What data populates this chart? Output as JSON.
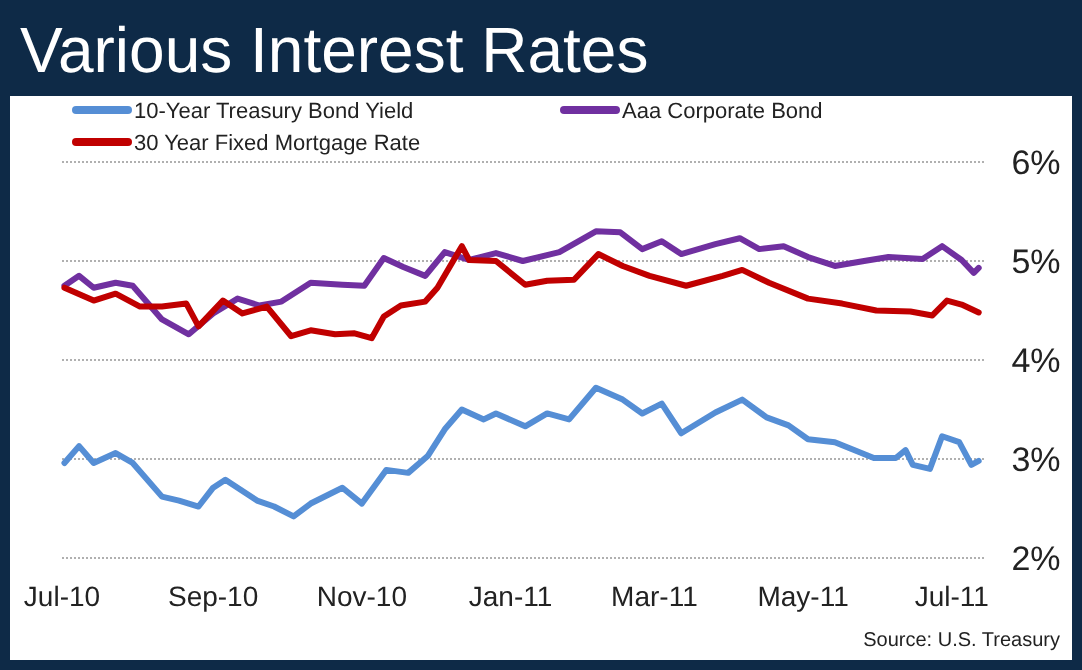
{
  "chart_data": {
    "type": "line",
    "title": "Various Interest Rates",
    "annotations": [
      "Source:  U.S. Treasury"
    ],
    "xlim": [
      "2010-07-01",
      "2011-07-15"
    ],
    "xticks": [
      {
        "value": "2010-07-01",
        "label": "Jul-10"
      },
      {
        "value": "2010-09-01",
        "label": "Sep-10"
      },
      {
        "value": "2010-11-01",
        "label": "Nov-10"
      },
      {
        "value": "2011-01-01",
        "label": "Jan-11"
      },
      {
        "value": "2011-03-01",
        "label": "Mar-11"
      },
      {
        "value": "2011-05-01",
        "label": "May-11"
      },
      {
        "value": "2011-07-01",
        "label": "Jul-11"
      }
    ],
    "ylim": [
      2,
      6
    ],
    "yticks": [
      {
        "value": 2,
        "label": "2%"
      },
      {
        "value": 3,
        "label": "3%"
      },
      {
        "value": 4,
        "label": "4%"
      },
      {
        "value": 5,
        "label": "5%"
      },
      {
        "value": 6,
        "label": "6%"
      }
    ],
    "grid": "y",
    "legend": "top",
    "marker": "none",
    "line_style": "solid",
    "series": [
      {
        "name": "10-Year Treasury Bond Yield",
        "color": "#558ed5",
        "x": [
          "2010-07-02",
          "2010-07-08",
          "2010-07-14",
          "2010-07-23",
          "2010-07-30",
          "2010-08-11",
          "2010-08-18",
          "2010-08-26",
          "2010-09-01",
          "2010-09-06",
          "2010-09-19",
          "2010-09-26",
          "2010-10-04",
          "2010-10-11",
          "2010-10-24",
          "2010-11-01",
          "2010-11-11",
          "2010-11-20",
          "2010-11-28",
          "2010-12-05",
          "2010-12-12",
          "2010-12-21",
          "2010-12-26",
          "2011-01-07",
          "2011-01-16",
          "2011-01-25",
          "2011-02-05",
          "2011-02-16",
          "2011-02-24",
          "2011-03-04",
          "2011-03-12",
          "2011-03-26",
          "2011-04-06",
          "2011-04-16",
          "2011-04-25",
          "2011-05-03",
          "2011-05-14",
          "2011-05-30",
          "2011-06-08",
          "2011-06-12",
          "2011-06-15",
          "2011-06-22",
          "2011-06-27",
          "2011-07-04",
          "2011-07-09",
          "2011-07-12"
        ],
        "values": [
          2.96,
          3.13,
          2.96,
          3.06,
          2.96,
          2.62,
          2.58,
          2.52,
          2.71,
          2.79,
          2.58,
          2.52,
          2.42,
          2.55,
          2.71,
          2.55,
          2.89,
          2.86,
          3.03,
          3.3,
          3.5,
          3.4,
          3.46,
          3.33,
          3.46,
          3.4,
          3.72,
          3.6,
          3.46,
          3.56,
          3.26,
          3.47,
          3.6,
          3.42,
          3.34,
          3.2,
          3.17,
          3.01,
          3.01,
          3.09,
          2.94,
          2.9,
          3.23,
          3.17,
          2.94,
          2.98
        ]
      },
      {
        "name": "Aaa Corporate Bond",
        "color": "#7030a0",
        "x": [
          "2010-07-02",
          "2010-07-08",
          "2010-07-14",
          "2010-07-23",
          "2010-07-30",
          "2010-08-11",
          "2010-08-22",
          "2010-09-01",
          "2010-09-11",
          "2010-09-20",
          "2010-09-29",
          "2010-10-11",
          "2010-10-24",
          "2010-11-02",
          "2010-11-10",
          "2010-11-18",
          "2010-11-27",
          "2010-12-05",
          "2010-12-15",
          "2010-12-26",
          "2011-01-06",
          "2011-01-21",
          "2011-02-05",
          "2011-02-15",
          "2011-02-24",
          "2011-03-04",
          "2011-03-12",
          "2011-03-26",
          "2011-04-05",
          "2011-04-13",
          "2011-04-23",
          "2011-05-03",
          "2011-05-14",
          "2011-05-26",
          "2011-06-05",
          "2011-06-19",
          "2011-06-27",
          "2011-07-05",
          "2011-07-10",
          "2011-07-12"
        ],
        "values": [
          4.75,
          4.85,
          4.73,
          4.78,
          4.75,
          4.41,
          4.26,
          4.47,
          4.62,
          4.55,
          4.59,
          4.78,
          4.76,
          4.75,
          5.03,
          4.94,
          4.85,
          5.09,
          5.01,
          5.08,
          5.0,
          5.09,
          5.3,
          5.29,
          5.12,
          5.2,
          5.07,
          5.17,
          5.23,
          5.12,
          5.15,
          5.04,
          4.95,
          5.0,
          5.04,
          5.02,
          5.15,
          5.01,
          4.88,
          4.93
        ]
      },
      {
        "name": "30 Year Fixed Mortgage Rate",
        "color": "#c00000",
        "x": [
          "2010-07-02",
          "2010-07-14",
          "2010-07-23",
          "2010-08-02",
          "2010-08-11",
          "2010-08-21",
          "2010-08-26",
          "2010-09-05",
          "2010-09-13",
          "2010-09-23",
          "2010-10-03",
          "2010-10-11",
          "2010-10-21",
          "2010-10-29",
          "2010-11-05",
          "2010-11-10",
          "2010-11-17",
          "2010-11-27",
          "2010-12-02",
          "2010-12-12",
          "2010-12-15",
          "2010-12-26",
          "2011-01-07",
          "2011-01-16",
          "2011-01-27",
          "2011-02-06",
          "2011-02-16",
          "2011-02-27",
          "2011-03-14",
          "2011-03-29",
          "2011-04-06",
          "2011-04-17",
          "2011-05-03",
          "2011-05-17",
          "2011-05-31",
          "2011-06-14",
          "2011-06-23",
          "2011-06-29",
          "2011-07-05",
          "2011-07-12"
        ],
        "values": [
          4.73,
          4.6,
          4.67,
          4.54,
          4.54,
          4.57,
          4.34,
          4.6,
          4.47,
          4.54,
          4.24,
          4.3,
          4.26,
          4.27,
          4.22,
          4.44,
          4.55,
          4.59,
          4.73,
          5.15,
          5.01,
          5.0,
          4.76,
          4.8,
          4.81,
          5.07,
          4.95,
          4.85,
          4.75,
          4.85,
          4.91,
          4.78,
          4.62,
          4.57,
          4.5,
          4.49,
          4.45,
          4.6,
          4.56,
          4.48
        ]
      }
    ]
  }
}
